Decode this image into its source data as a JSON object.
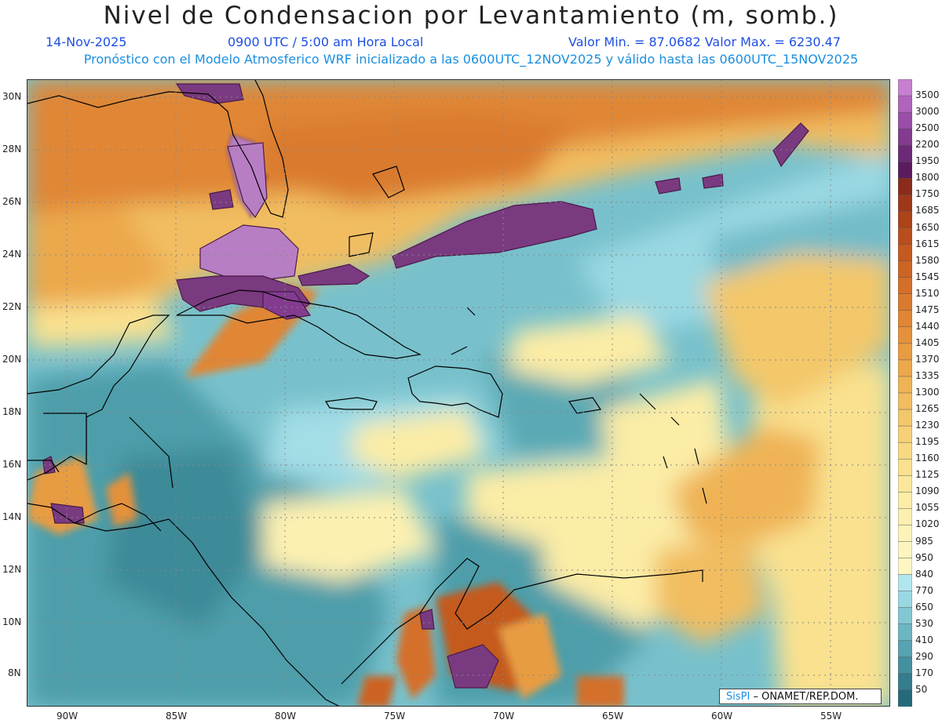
{
  "header": {
    "title": "Nivel de Condensacion por Levantamiento (m, somb.)",
    "date": "14-Nov-2025",
    "time": "0900 UTC / 5:00 am Hora Local",
    "min_max": "Valor Min. = 87.0682  Valor Max. = 6230.47",
    "forecast_info": "Pronóstico con el Modelo Atmosferico WRF inicializado a las 0600UTC_12NOV2025 y válido hasta las  0600UTC_15NOV2025"
  },
  "lon_labels": [
    "90W",
    "85W",
    "80W",
    "75W",
    "70W",
    "65W",
    "60W",
    "55W"
  ],
  "lat_labels": [
    "30N",
    "28N",
    "26N",
    "24N",
    "22N",
    "20N",
    "18N",
    "16N",
    "14N",
    "12N",
    "10N",
    "8N"
  ],
  "colorbar": {
    "labels": [
      "3500",
      "3000",
      "2500",
      "2200",
      "1950",
      "1800",
      "1750",
      "1685",
      "1650",
      "1615",
      "1580",
      "1545",
      "1510",
      "1475",
      "1440",
      "1405",
      "1370",
      "1335",
      "1300",
      "1265",
      "1230",
      "1195",
      "1160",
      "1125",
      "1090",
      "1055",
      "1020",
      "985",
      "950",
      "840",
      "770",
      "650",
      "530",
      "410",
      "290",
      "170",
      "50"
    ],
    "colors": [
      "#c77fd0",
      "#b064bd",
      "#9a4ea8",
      "#833b8f",
      "#6c2a76",
      "#5a1c5e",
      "#8a2b1b",
      "#9e3819",
      "#ad4319",
      "#b94e1c",
      "#c45a1f",
      "#cc6424",
      "#d46f29",
      "#da7a2f",
      "#e08635",
      "#e4913b",
      "#e89c42",
      "#eca84b",
      "#efb355",
      "#f1bd60",
      "#f3c76b",
      "#f5d077",
      "#f7d983",
      "#f9e18f",
      "#fae79b",
      "#fbeca6",
      "#fcf0b0",
      "#fdf3b9",
      "#fdf5c0",
      "#fdf6c3",
      "#b2e6ef",
      "#99d8e2",
      "#82c8d3",
      "#6cb6c2",
      "#58a3b1",
      "#45909f",
      "#347d8d",
      "#256a7a"
    ]
  },
  "credit": {
    "brand": "SisPI",
    "org": "ONAMET/REP.DOM."
  }
}
